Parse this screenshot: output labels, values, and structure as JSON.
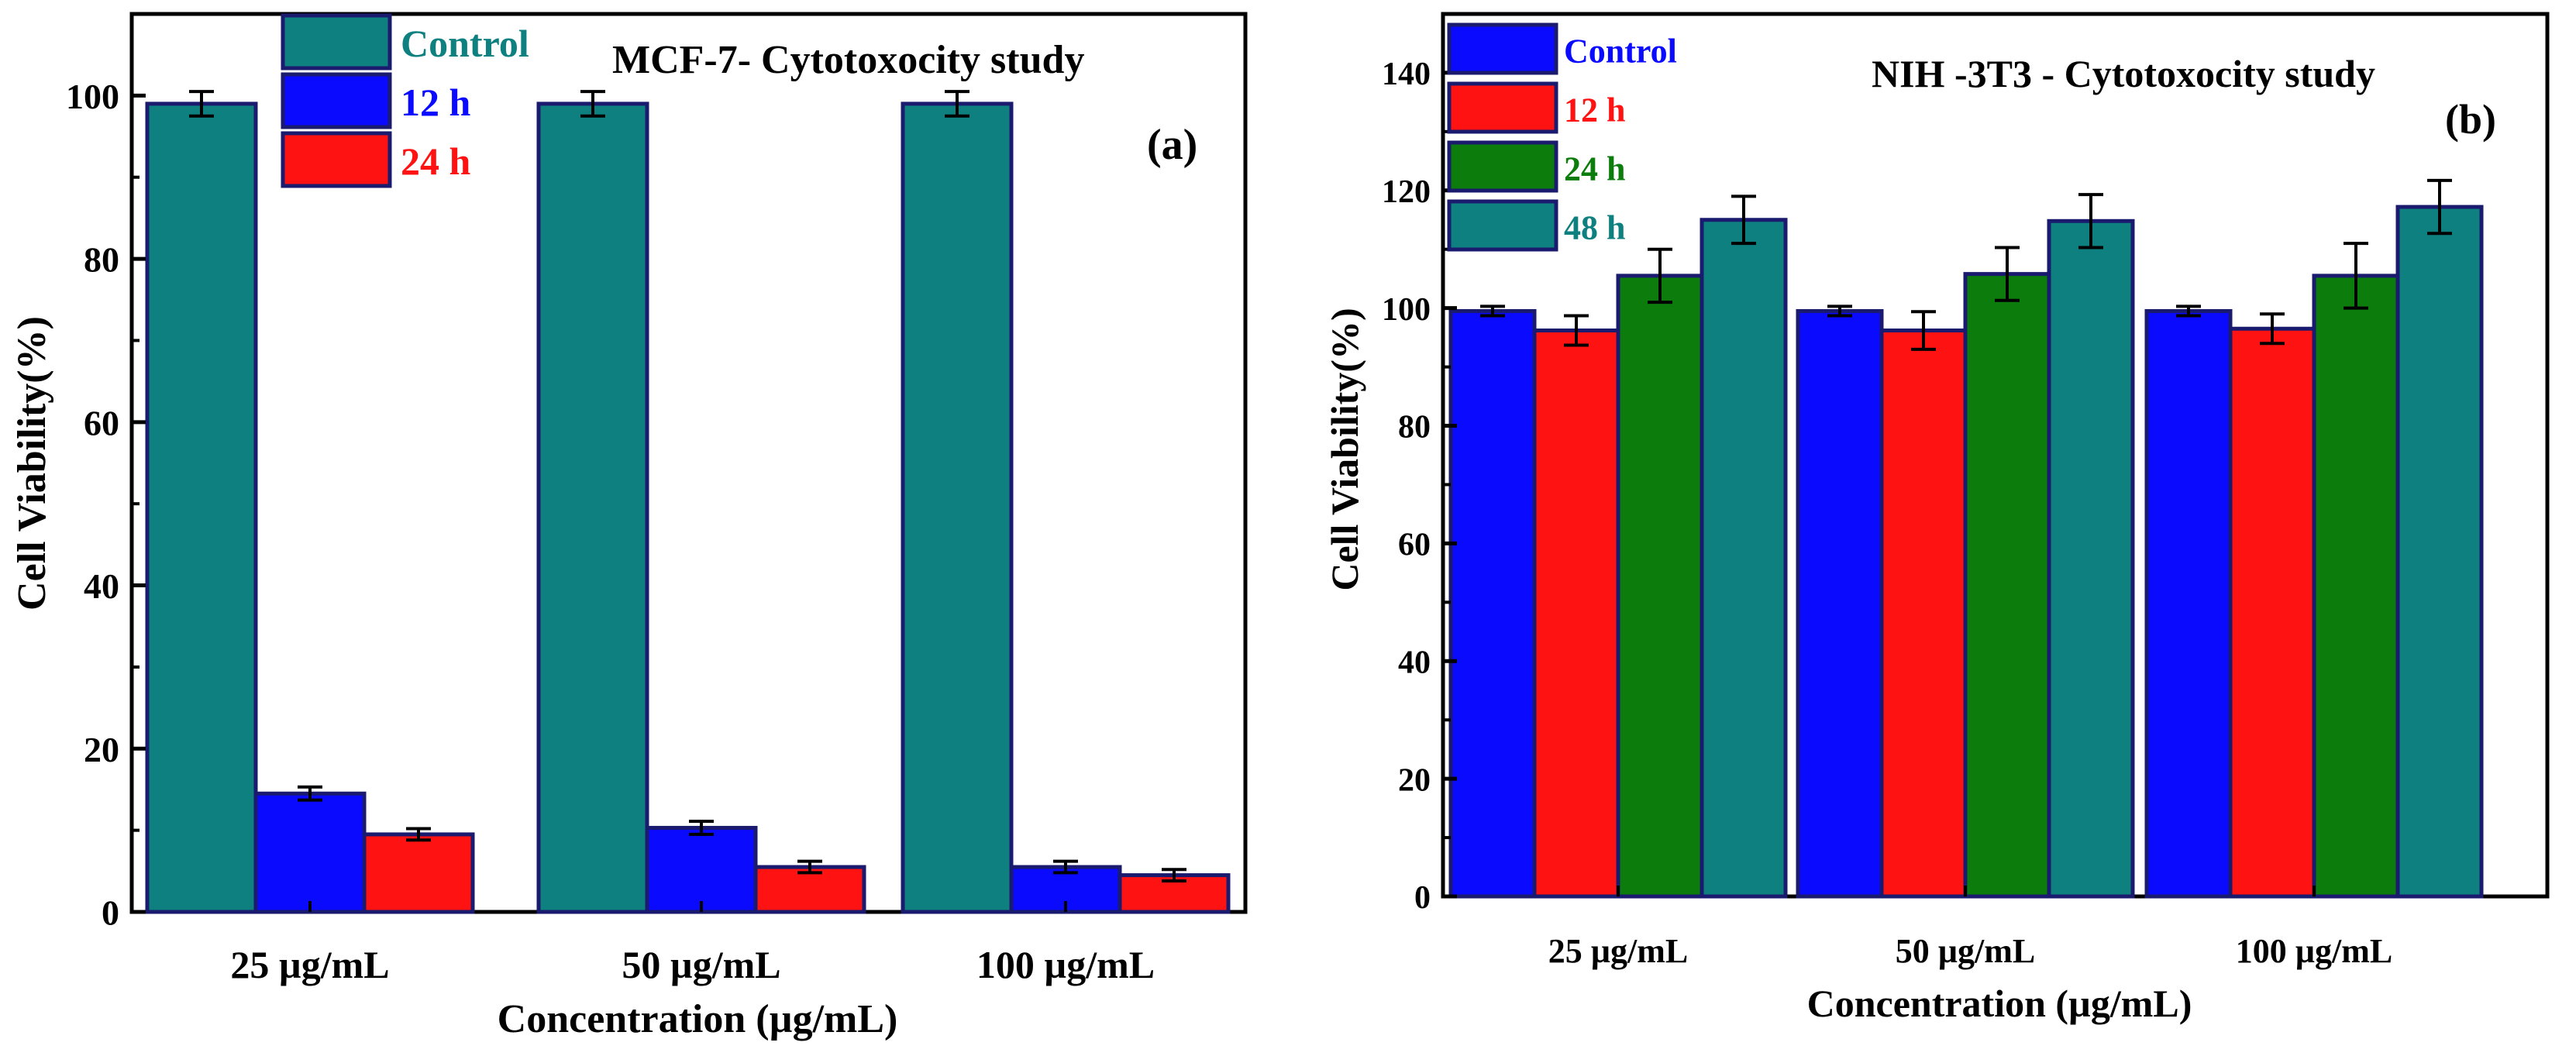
{
  "chart_data": [
    {
      "type": "bar",
      "panel_label": "(a)",
      "title": "MCF-7- Cytotoxocity study",
      "xlabel": "Concentration (µg/mL)",
      "ylabel": "Cell Viability(%)",
      "ylim": [
        0,
        110
      ],
      "yticks": [
        0,
        20,
        40,
        60,
        80,
        100
      ],
      "categories": [
        "25 µg/mL",
        "50 µg/mL",
        "100 µg/mL"
      ],
      "legend_position": "top-left",
      "series": [
        {
          "name": "Control",
          "color": "#0e8080",
          "text_color": "#0e8080",
          "values": [
            99,
            99,
            99
          ],
          "errors": [
            1.5,
            1.5,
            1.5
          ]
        },
        {
          "name": "12 h",
          "color": "#0a0aff",
          "text_color": "#0a0aff",
          "values": [
            14.5,
            10.3,
            5.5
          ],
          "errors": [
            0.8,
            0.8,
            0.7
          ]
        },
        {
          "name": "24 h",
          "color": "#ff1212",
          "text_color": "#ff1212",
          "values": [
            9.5,
            5.5,
            4.5
          ],
          "errors": [
            0.7,
            0.7,
            0.7
          ]
        }
      ]
    },
    {
      "type": "bar",
      "panel_label": "(b)",
      "title": "NIH -3T3 - Cytotoxocity study",
      "xlabel": "Concentration (µg/mL)",
      "ylabel": "Cell Viability(%)",
      "ylim": [
        0,
        150
      ],
      "yticks": [
        0,
        20,
        40,
        60,
        80,
        100,
        120,
        140
      ],
      "categories": [
        "25 µg/mL",
        "50 µg/mL",
        "100 µg/mL"
      ],
      "legend_position": "top-left",
      "series": [
        {
          "name": "Control",
          "color": "#0a0aff",
          "text_color": "#0a0aff",
          "values": [
            99.5,
            99.5,
            99.5
          ],
          "errors": [
            0.8,
            0.8,
            0.8
          ]
        },
        {
          "name": "12 h",
          "color": "#ff1212",
          "text_color": "#ff1212",
          "values": [
            96.2,
            96.2,
            96.5
          ],
          "errors": [
            2.5,
            3.2,
            2.5
          ]
        },
        {
          "name": "24 h",
          "color": "#0c7c0c",
          "text_color": "#0c7c0c",
          "values": [
            105.5,
            105.8,
            105.5
          ],
          "errors": [
            4.5,
            4.5,
            5.5
          ]
        },
        {
          "name": "48 h",
          "color": "#0e8080",
          "text_color": "#0e8080",
          "values": [
            115,
            114.8,
            117.2
          ],
          "errors": [
            4.0,
            4.5,
            4.5
          ]
        }
      ]
    }
  ]
}
